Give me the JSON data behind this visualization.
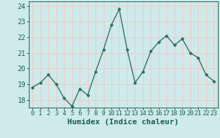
{
  "x": [
    0,
    1,
    2,
    3,
    4,
    5,
    6,
    7,
    8,
    9,
    10,
    11,
    12,
    13,
    14,
    15,
    16,
    17,
    18,
    19,
    20,
    21,
    22,
    23
  ],
  "y": [
    18.8,
    19.1,
    19.6,
    19.0,
    18.1,
    17.6,
    18.7,
    18.3,
    19.8,
    21.2,
    22.8,
    23.8,
    21.2,
    19.1,
    19.8,
    21.1,
    21.7,
    22.1,
    21.5,
    21.9,
    21.0,
    20.7,
    19.6,
    19.2
  ],
  "xlabel": "Humidex (Indice chaleur)",
  "ylim": [
    17.5,
    24.3
  ],
  "xlim": [
    -0.5,
    23.5
  ],
  "yticks": [
    18,
    19,
    20,
    21,
    22,
    23,
    24
  ],
  "xticks": [
    0,
    1,
    2,
    3,
    4,
    5,
    6,
    7,
    8,
    9,
    10,
    11,
    12,
    13,
    14,
    15,
    16,
    17,
    18,
    19,
    20,
    21,
    22,
    23
  ],
  "line_color": "#2d6e5e",
  "marker_color": "#2d6e5e",
  "bg_color": "#ceeaea",
  "grid_color": "#f0c8c8",
  "axis_color": "#2d6e5e",
  "tick_label_color": "#1a5c4e",
  "xlabel_fontsize": 8,
  "ytick_fontsize": 7,
  "xtick_fontsize": 6.5
}
